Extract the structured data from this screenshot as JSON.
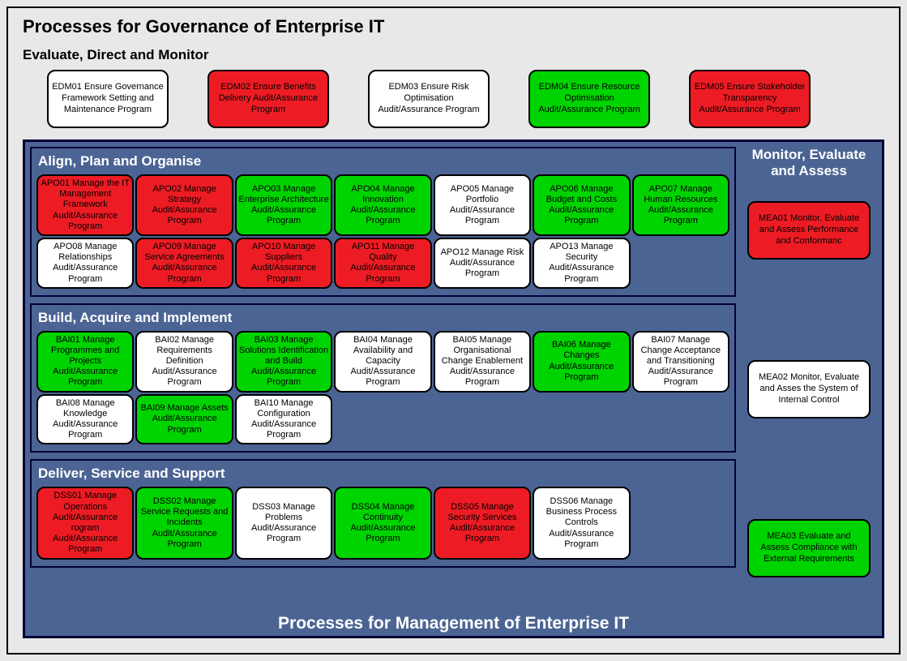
{
  "colors": {
    "red": "#ed1c24",
    "green": "#00d400",
    "white": "#ffffff",
    "section_bg": "#4b6493",
    "border_dark": "#000037",
    "page_bg": "#e8e8e8"
  },
  "typography": {
    "main_title_size": 22,
    "subtitle_size": 17,
    "section_title_size": 17,
    "box_font_size": 11,
    "bottom_title_size": 21,
    "font_family": "Arial Narrow, Arial, sans-serif"
  },
  "main_title": "Processes for Governance of Enterprise IT",
  "subtitle": "Evaluate, Direct and Monitor",
  "bottom_title": "Processes for Management of Enterprise IT",
  "edm": [
    {
      "label": "EDM01 Ensure Governance Framework Setting and Maintenance Program",
      "color": "white"
    },
    {
      "label": "EDM02 Ensure Benefits Delivery Audit/Assurance Program",
      "color": "red"
    },
    {
      "label": "EDM03 Ensure Risk Optimisation Audit/Assurance Program",
      "color": "white"
    },
    {
      "label": "EDM04 Ensure Resource Optimisation Audit/Assurance Program",
      "color": "green"
    },
    {
      "label": "EDM05 Ensure Stakeholder Transparency Audit/Assurance Program",
      "color": "red"
    }
  ],
  "sections": {
    "apo": {
      "title": "Align, Plan and Organise",
      "cols": 7,
      "items": [
        {
          "label": "APO01 Manage the IT Management Framework Audit/Assurance Program",
          "color": "red"
        },
        {
          "label": "APO02 Manage Strategy Audit/Assurance Program",
          "color": "red"
        },
        {
          "label": "APO03 Manage Enterprise Architecture Audit/Assurance Program",
          "color": "green"
        },
        {
          "label": "APO04 Manage Innovation Audit/Assurance Program",
          "color": "green"
        },
        {
          "label": "APO05 Manage Portfolio Audit/Assurance Program",
          "color": "white"
        },
        {
          "label": "APO06 Manage Budget and Costs Audit/Assurance Program",
          "color": "green"
        },
        {
          "label": "APO07 Manage Human Resources Audit/Assurance Program",
          "color": "green"
        },
        {
          "label": "APO08 Manage Relationships Audit/Assurance Program",
          "color": "white"
        },
        {
          "label": "APO09 Manage Service Agreements Audit/Assurance Program",
          "color": "red"
        },
        {
          "label": "APO10 Manage Suppliers Audit/Assurance Program",
          "color": "red"
        },
        {
          "label": "APO11 Manage Quality Audit/Assurance Program",
          "color": "red"
        },
        {
          "label": "APO12 Manage Risk Audit/Assurance Program",
          "color": "white"
        },
        {
          "label": "APO13 Manage Security Audit/Assurance Program",
          "color": "white"
        }
      ]
    },
    "bai": {
      "title": "Build, Acquire and Implement",
      "cols": 7,
      "items": [
        {
          "label": "BAI01 Manage Programmes and Projects Audit/Assurance Program",
          "color": "green"
        },
        {
          "label": "BAI02 Manage Requirements Definition Audit/Assurance Program",
          "color": "white"
        },
        {
          "label": "BAI03 Manage Solutions Identification and Build Audit/Assurance Program",
          "color": "green"
        },
        {
          "label": "BAI04 Manage Availability and Capacity Audit/Assurance Program",
          "color": "white"
        },
        {
          "label": "BAI05 Manage Organisational Change Enablement Audit/Assurance Program",
          "color": "white"
        },
        {
          "label": "BAI06 Manage Changes Audit/Assurance Program",
          "color": "green"
        },
        {
          "label": "BAI07 Manage Change Acceptance and Transitioning Audit/Assurance Program",
          "color": "white"
        },
        {
          "label": "BAI08 Manage Knowledge Audit/Assurance Program",
          "color": "white"
        },
        {
          "label": "BAI09 Manage Assets Audit/Assurance Program",
          "color": "green"
        },
        {
          "label": "BAI10 Manage Configuration Audit/Assurance Program",
          "color": "white"
        }
      ]
    },
    "dss": {
      "title": "Deliver, Service and Support",
      "cols": 7,
      "items": [
        {
          "label": "DSS01 Manage Operations Audit/Assurance rogram Audit/Assurance Program",
          "color": "red"
        },
        {
          "label": "DSS02 Manage Service Requests and Incidents Audit/Assurance Program",
          "color": "green"
        },
        {
          "label": "DSS03 Manage Problems Audit/Assurance Program",
          "color": "white"
        },
        {
          "label": "DSS04 Manage Continuity Audit/Assurance Program",
          "color": "green"
        },
        {
          "label": "DSS05 Manage Security Services Audit/Assurance Program",
          "color": "red"
        },
        {
          "label": "DSS06 Manage Business Process Controls Audit/Assurance Program",
          "color": "white"
        }
      ]
    }
  },
  "mea": {
    "title": "Monitor, Evaluate and Assess",
    "items": [
      {
        "label": "MEA01 Monitor, Evaluate and Assess Performance and Conformanc",
        "color": "red"
      },
      {
        "label": "MEA02 Monitor, Evaluate and Asses the System of Internal Control",
        "color": "white"
      },
      {
        "label": "MEA03 Evaluate and Assess Compliance with External Requirements",
        "color": "green"
      }
    ]
  }
}
